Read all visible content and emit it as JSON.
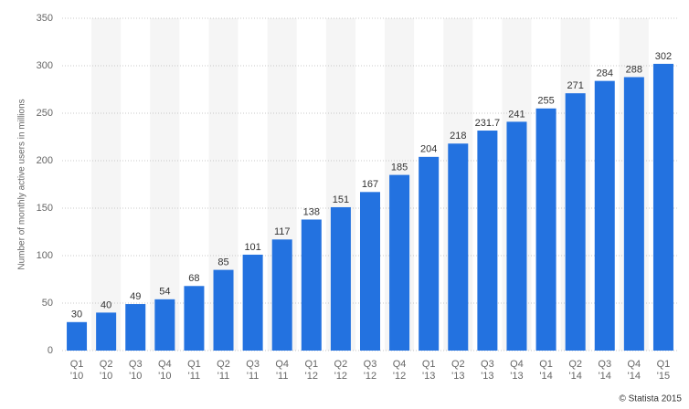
{
  "chart_data": {
    "type": "bar",
    "y_label": "Number of monthly active users in millions",
    "credit": "© Statista 2015",
    "categories": [
      [
        "Q1",
        "'10"
      ],
      [
        "Q2",
        "'10"
      ],
      [
        "Q3",
        "'10"
      ],
      [
        "Q4",
        "'10"
      ],
      [
        "Q1",
        "'11"
      ],
      [
        "Q2",
        "'11"
      ],
      [
        "Q3",
        "'11"
      ],
      [
        "Q4",
        "'11"
      ],
      [
        "Q1",
        "'12"
      ],
      [
        "Q2",
        "'12"
      ],
      [
        "Q3",
        "'12"
      ],
      [
        "Q4",
        "'12"
      ],
      [
        "Q1",
        "'13"
      ],
      [
        "Q2",
        "'13"
      ],
      [
        "Q3",
        "'13"
      ],
      [
        "Q4",
        "'13"
      ],
      [
        "Q1",
        "'14"
      ],
      [
        "Q2",
        "'14"
      ],
      [
        "Q3",
        "'14"
      ],
      [
        "Q4",
        "'14"
      ],
      [
        "Q1",
        "'15"
      ]
    ],
    "values": [
      30,
      40,
      49,
      54,
      68,
      85,
      101,
      117,
      138,
      151,
      167,
      185,
      204,
      218,
      231.7,
      241,
      255,
      271,
      284,
      288,
      302
    ],
    "color": "#2372e0",
    "ylim": [
      0,
      350
    ],
    "yticks": [
      0,
      50,
      100,
      150,
      200,
      250,
      300,
      350
    ],
    "grid": true
  }
}
